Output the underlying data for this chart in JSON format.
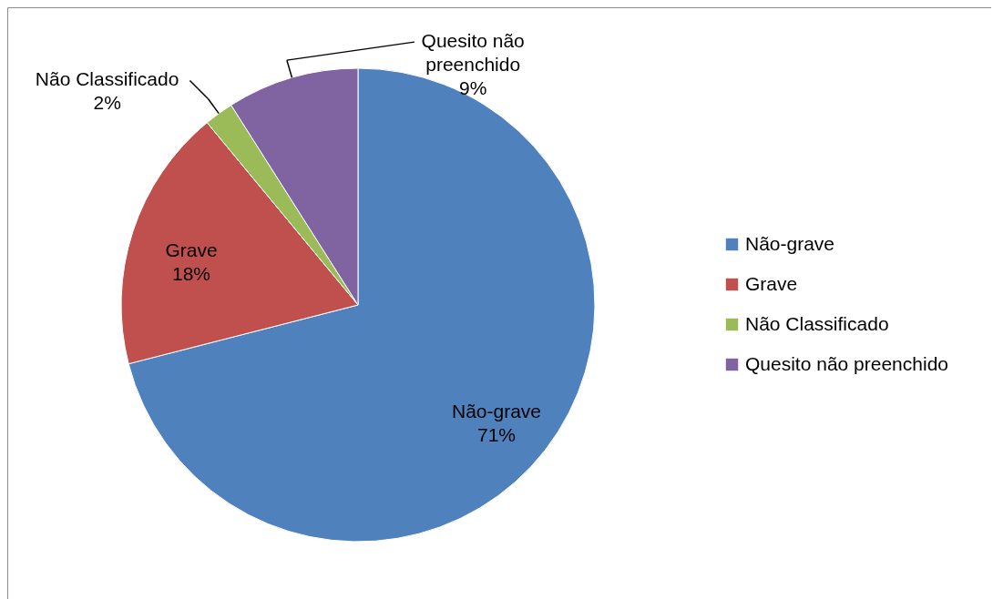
{
  "chart_data": {
    "type": "pie",
    "categories": [
      "Não-grave",
      "Grave",
      "Não Classificado",
      "Quesito não preenchido"
    ],
    "values": [
      71,
      18,
      2,
      9
    ],
    "colors": [
      "#4f81bd",
      "#c0504d",
      "#9bbb59",
      "#8064a2"
    ],
    "value_labels": [
      "71%",
      "18%",
      "2%",
      "9%"
    ],
    "legend": "right"
  }
}
